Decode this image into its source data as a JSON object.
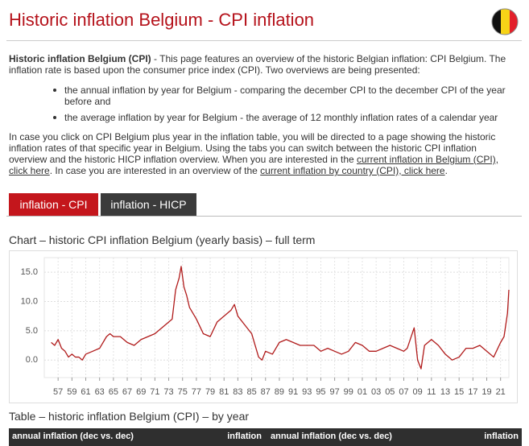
{
  "header": {
    "title": "Historic inflation Belgium - CPI inflation"
  },
  "intro": {
    "bold": "Historic inflation Belgium (CPI)",
    "text": " - This page features an overview of the historic Belgian inflation: CPI Belgium. The inflation rate is based upon the consumer price index (CPI). Two overviews are being presented:",
    "bullets": [
      "the annual inflation by year for Belgium - comparing the december CPI to the december CPI of the year before and",
      "the average inflation by year for Belgium - the average of 12 monthly inflation rates of a calendar year"
    ]
  },
  "paragraph2": {
    "text1": "In case you click on CPI Belgium plus year in the inflation table, you will be directed to a page showing the historic inflation rates of that specific year in Belgium. Using the tabs you can switch between the historic CPI inflation overview and the historic HICP inflation overview. When you are interested in the ",
    "link1": "current inflation in Belgium (CPI), click here",
    "text2": ". In case you are interested in an overview of the ",
    "link2": "current inflation by country (CPI), click here",
    "text3": "."
  },
  "tabs": [
    "inflation - CPI",
    "inflation - HICP"
  ],
  "chart_title": "Chart – historic CPI inflation Belgium (yearly basis) – full term",
  "chart_data": {
    "type": "line",
    "color": "#b01a1a",
    "grid": true,
    "x": [
      1956,
      1956.5,
      1957,
      1957.5,
      1958,
      1958.5,
      1959,
      1959.5,
      1960,
      1960.5,
      1961,
      1962,
      1963,
      1964,
      1964.5,
      1965,
      1966,
      1967,
      1968,
      1969,
      1970,
      1971,
      1972,
      1973,
      1973.5,
      1974,
      1974.5,
      1974.8,
      1975.2,
      1975.6,
      1976,
      1977,
      1978,
      1979,
      1980,
      1981,
      1982,
      1982.5,
      1983,
      1984,
      1985,
      1986,
      1986.5,
      1987,
      1988,
      1989,
      1990,
      1991,
      1992,
      1993,
      1994,
      1995,
      1996,
      1997,
      1998,
      1999,
      2000,
      2001,
      2002,
      2003,
      2004,
      2005,
      2006,
      2007,
      2007.5,
      2008.5,
      2009,
      2009.5,
      2010,
      2011,
      2012,
      2013,
      2014,
      2015,
      2016,
      2017,
      2018,
      2019,
      2020,
      2021,
      2021.5,
      2022,
      2022.2
    ],
    "values": [
      3,
      2.5,
      3.5,
      2,
      1.5,
      0.5,
      1,
      0.5,
      0.5,
      0,
      1,
      1.5,
      2,
      4,
      4.5,
      4,
      4,
      3,
      2.5,
      3.5,
      4,
      4.5,
      5.5,
      6.5,
      7,
      12,
      14,
      16,
      12.5,
      11,
      9,
      7,
      4.5,
      4,
      6.5,
      7.5,
      8.5,
      9.5,
      7.5,
      6,
      4.5,
      0.5,
      0,
      1.5,
      1,
      3,
      3.5,
      3,
      2.5,
      2.5,
      2.5,
      1.5,
      2,
      1.5,
      1,
      1.5,
      3,
      2.5,
      1.5,
      1.5,
      2,
      2.5,
      2,
      1.5,
      2,
      5.5,
      0,
      -1.5,
      2.5,
      3.5,
      2.5,
      1,
      0,
      0.5,
      2,
      2,
      2.5,
      1.5,
      0.5,
      3,
      4,
      8,
      12
    ],
    "xlim": [
      1955,
      2022.2
    ],
    "ylim": [
      -3,
      17.5
    ],
    "yticks": [
      {
        "value": 0,
        "label": "0.0"
      },
      {
        "value": 5,
        "label": "5.0"
      },
      {
        "value": 10,
        "label": "10.0"
      },
      {
        "value": 15,
        "label": "15.0"
      }
    ],
    "xticks": [
      {
        "value": 1957,
        "label": "57"
      },
      {
        "value": 1959,
        "label": "59"
      },
      {
        "value": 1961,
        "label": "61"
      },
      {
        "value": 1963,
        "label": "63"
      },
      {
        "value": 1965,
        "label": "65"
      },
      {
        "value": 1967,
        "label": "67"
      },
      {
        "value": 1969,
        "label": "69"
      },
      {
        "value": 1971,
        "label": "71"
      },
      {
        "value": 1973,
        "label": "73"
      },
      {
        "value": 1975,
        "label": "75"
      },
      {
        "value": 1977,
        "label": "77"
      },
      {
        "value": 1979,
        "label": "79"
      },
      {
        "value": 1981,
        "label": "81"
      },
      {
        "value": 1983,
        "label": "83"
      },
      {
        "value": 1985,
        "label": "85"
      },
      {
        "value": 1987,
        "label": "87"
      },
      {
        "value": 1989,
        "label": "89"
      },
      {
        "value": 1991,
        "label": "91"
      },
      {
        "value": 1993,
        "label": "93"
      },
      {
        "value": 1995,
        "label": "95"
      },
      {
        "value": 1997,
        "label": "97"
      },
      {
        "value": 1999,
        "label": "99"
      },
      {
        "value": 2001,
        "label": "01"
      },
      {
        "value": 2003,
        "label": "03"
      },
      {
        "value": 2005,
        "label": "05"
      },
      {
        "value": 2007,
        "label": "07"
      },
      {
        "value": 2009,
        "label": "09"
      },
      {
        "value": 2011,
        "label": "11"
      },
      {
        "value": 2013,
        "label": "13"
      },
      {
        "value": 2015,
        "label": "15"
      },
      {
        "value": 2017,
        "label": "17"
      },
      {
        "value": 2019,
        "label": "19"
      },
      {
        "value": 2021,
        "label": "21"
      }
    ]
  },
  "table": {
    "title": "Table – historic inflation Belgium (CPI) – by year",
    "headers": [
      "annual inflation (dec vs. dec)",
      "inflation",
      "annual inflation (dec vs. dec)",
      "inflation"
    ]
  }
}
